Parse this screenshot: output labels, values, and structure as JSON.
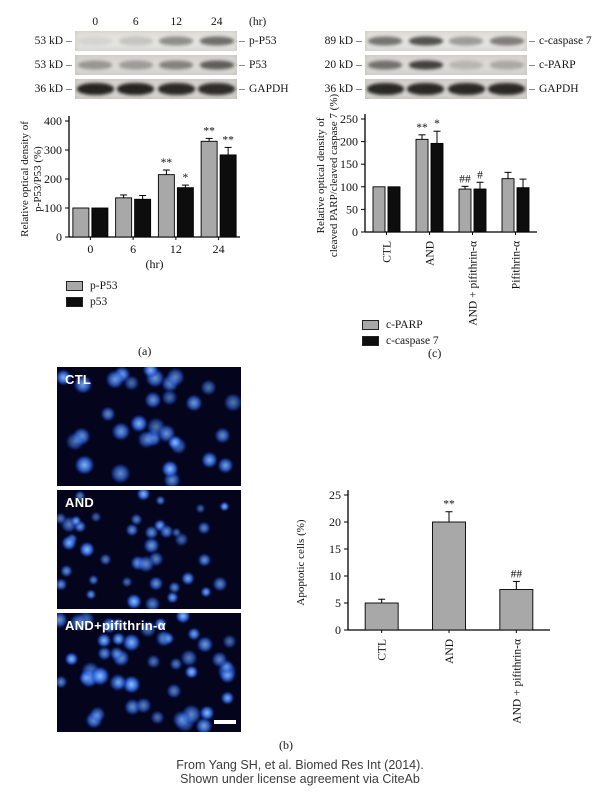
{
  "ui": {
    "dash": "–"
  },
  "caption": {
    "line1": "From Yang SH, et al. Biomed Res Int (2014).",
    "line2": "Shown under license agreement via CiteAb"
  },
  "panel_labels": {
    "a": "(a)",
    "b": "(b)",
    "c": "(c)"
  },
  "blot_a": {
    "lane_headers": [
      "0",
      "6",
      "12",
      "24"
    ],
    "lane_unit": "(hr)",
    "rows": [
      {
        "kd": "53 kD",
        "protein": "p-P53",
        "intensities": [
          0.07,
          0.15,
          0.42,
          0.58
        ]
      },
      {
        "kd": "53 kD",
        "protein": "P53",
        "intensities": [
          0.35,
          0.32,
          0.45,
          0.65
        ]
      },
      {
        "kd": "36 kD",
        "protein": "GAPDH",
        "intensities": [
          0.95,
          0.95,
          0.92,
          0.9
        ]
      }
    ]
  },
  "blot_c": {
    "rows": [
      {
        "kd": "89 kD",
        "protein": "c-caspase 7",
        "intensities": [
          0.55,
          0.72,
          0.35,
          0.5
        ]
      },
      {
        "kd": "20 kD",
        "protein": "c-PARP",
        "intensities": [
          0.55,
          0.8,
          0.18,
          0.25
        ]
      },
      {
        "kd": "36 kD",
        "protein": "GAPDH",
        "intensities": [
          0.92,
          0.92,
          0.92,
          0.92
        ]
      }
    ]
  },
  "micrographs": {
    "images": [
      {
        "label": "CTL"
      },
      {
        "label": "AND"
      },
      {
        "label": "AND+pifithrin-α"
      }
    ],
    "background_color": "#04051c",
    "nucleus_color": "#3b82f0"
  },
  "chart_data": [
    {
      "type": "bar",
      "title": "p-P53/P53 relative optical density time course",
      "categories": [
        "0",
        "6",
        "12",
        "24"
      ],
      "xlabel": "(hr)",
      "ylabel_lines": [
        "Relative optical density of",
        "p-P53/P53 (%)"
      ],
      "ylim": [
        0,
        400
      ],
      "ytick_step": 100,
      "grid": false,
      "rotate_xticks": false,
      "legend_position": "below-left",
      "series": [
        {
          "name": "p-P53",
          "color": "#a8a8a8",
          "values": [
            100,
            135,
            215,
            330
          ],
          "errors": [
            0,
            10,
            16,
            10
          ],
          "sig": [
            "",
            "",
            "**",
            "**"
          ]
        },
        {
          "name": "p53",
          "color": "#0d0d0d",
          "values": [
            100,
            130,
            170,
            283
          ],
          "errors": [
            0,
            13,
            9,
            26
          ],
          "sig": [
            "",
            "",
            "*",
            "**"
          ]
        }
      ]
    },
    {
      "type": "bar",
      "title": "Cleaved PARP / cleaved caspase 7 relative optical density",
      "categories": [
        "CTL",
        "AND",
        "AND + pifithrin-α",
        "Pifithrin-α"
      ],
      "xlabel": "",
      "ylabel_lines": [
        "Relative optical density of",
        "cleaved PARP/cleaved caspase 7 (%)"
      ],
      "ylim": [
        0,
        250
      ],
      "ytick_step": 50,
      "grid": false,
      "rotate_xticks": true,
      "legend_position": "below-left",
      "series": [
        {
          "name": "c-PARP",
          "color": "#a8a8a8",
          "values": [
            100,
            205,
            95,
            118
          ],
          "errors": [
            0,
            10,
            6,
            14
          ],
          "sig": [
            "",
            "**",
            "##",
            ""
          ]
        },
        {
          "name": "c-caspase 7",
          "color": "#0d0d0d",
          "values": [
            100,
            196,
            95,
            98
          ],
          "errors": [
            0,
            27,
            15,
            19
          ],
          "sig": [
            "",
            "*",
            "#",
            ""
          ]
        }
      ]
    },
    {
      "type": "bar",
      "title": "Apoptotic cells",
      "categories": [
        "CTL",
        "AND",
        "AND + pifithrin-α"
      ],
      "xlabel": "",
      "ylabel_lines": [
        "Apoptotic cells (%)"
      ],
      "ylim": [
        0,
        25
      ],
      "ytick_step": 5,
      "grid": false,
      "rotate_xticks": true,
      "legend_position": "none",
      "series": [
        {
          "name": "Apoptotic cells",
          "color": "#a8a8a8",
          "values": [
            5,
            20,
            7.5
          ],
          "errors": [
            0.7,
            1.9,
            1.5
          ],
          "sig": [
            "",
            "**",
            "##"
          ]
        }
      ]
    }
  ]
}
